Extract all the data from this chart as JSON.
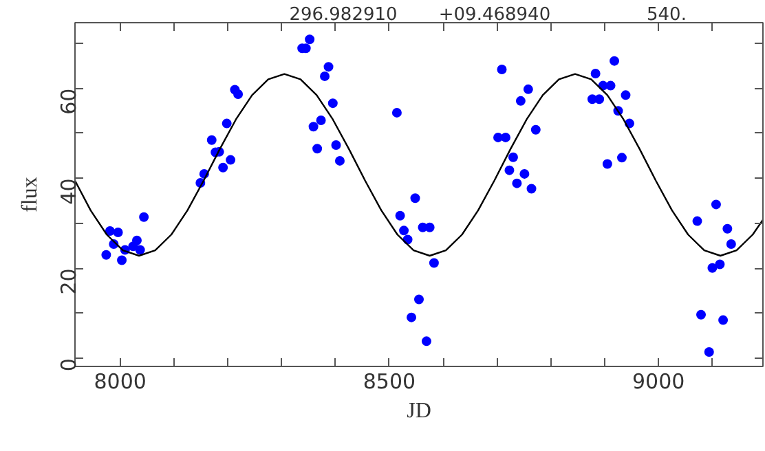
{
  "chart_data": {
    "type": "scatter",
    "xlabel": "JD",
    "ylabel": "flux",
    "annotations": [
      "296.982910",
      "+09.468940",
      "540."
    ],
    "xlim": [
      7916,
      9194
    ],
    "ylim": [
      -1.8,
      74.6
    ],
    "xticks": [
      {
        "value": 8000,
        "label": "8000"
      },
      {
        "value": 8100,
        "label": null
      },
      {
        "value": 8200,
        "label": null
      },
      {
        "value": 8300,
        "label": null
      },
      {
        "value": 8400,
        "label": null
      },
      {
        "value": 8500,
        "label": "8500"
      },
      {
        "value": 8600,
        "label": null
      },
      {
        "value": 8700,
        "label": null
      },
      {
        "value": 8800,
        "label": null
      },
      {
        "value": 8900,
        "label": null
      },
      {
        "value": 9000,
        "label": "9000"
      },
      {
        "value": 9100,
        "label": null
      }
    ],
    "yticks": [
      {
        "value": 0,
        "label": "0"
      },
      {
        "value": 10,
        "label": null
      },
      {
        "value": 20,
        "label": "20"
      },
      {
        "value": 30,
        "label": null
      },
      {
        "value": 40,
        "label": "40"
      },
      {
        "value": 50,
        "label": null
      },
      {
        "value": 60,
        "label": "60"
      },
      {
        "value": 70,
        "label": null
      }
    ],
    "grid": false,
    "marker": "circle",
    "series": [
      {
        "color": "#0000ff",
        "x": [
          7974,
          7981,
          7988,
          7996,
          8003,
          8009,
          8024,
          8031,
          8037,
          8044,
          8149,
          8156,
          8170,
          8177,
          8184,
          8191,
          8198,
          8205,
          8213,
          8219,
          8338,
          8345,
          8352,
          8359,
          8366,
          8373,
          8380,
          8387,
          8395,
          8401,
          8408,
          8514,
          8520,
          8527,
          8534,
          8541,
          8548,
          8555,
          8562,
          8569,
          8575,
          8583,
          8702,
          8709,
          8716,
          8723,
          8730,
          8737,
          8744,
          8751,
          8758,
          8764,
          8772,
          8877,
          8883,
          8890,
          8897,
          8905,
          8911,
          8918,
          8925,
          8932,
          8939,
          8946,
          9072,
          9079,
          9094,
          9100,
          9107,
          9114,
          9120,
          9128,
          9135
        ],
        "values": [
          23.0,
          28.3,
          25.4,
          28.0,
          21.8,
          24.1,
          24.9,
          26.2,
          24.1,
          31.4,
          39.0,
          41.0,
          48.5,
          45.8,
          45.9,
          42.4,
          52.2,
          44.1,
          59.7,
          58.7,
          68.9,
          68.9,
          70.9,
          51.5,
          46.6,
          52.9,
          62.7,
          64.8,
          56.7,
          47.4,
          43.9,
          54.6,
          31.7,
          28.4,
          26.4,
          9.1,
          35.6,
          13.1,
          29.1,
          3.8,
          29.1,
          21.2,
          49.1,
          64.2,
          49.1,
          41.8,
          44.7,
          38.9,
          57.2,
          41.0,
          59.8,
          37.7,
          50.8,
          57.6,
          63.3,
          57.6,
          60.6,
          43.2,
          60.6,
          66.1,
          55.0,
          44.6,
          58.5,
          52.2,
          30.5,
          9.7,
          1.4,
          20.1,
          34.2,
          20.9,
          8.5,
          28.8,
          25.4
        ]
      },
      {
        "type": "line",
        "color": "#000000",
        "marker": "none",
        "line_style": "solid",
        "x": [
          7916,
          7945,
          7975,
          8005,
          8035,
          8065,
          8095,
          8125,
          8155,
          8185,
          8215,
          8245,
          8275,
          8305,
          8335,
          8365,
          8395,
          8425,
          8455,
          8485,
          8515,
          8545,
          8575,
          8605,
          8635,
          8665,
          8695,
          8725,
          8755,
          8785,
          8815,
          8845,
          8875,
          8905,
          8935,
          8965,
          8995,
          9025,
          9055,
          9085,
          9115,
          9145,
          9175,
          9194
        ],
        "values": [
          39.5,
          32.9,
          27.5,
          24.0,
          22.8,
          24.0,
          27.5,
          32.9,
          39.5,
          46.5,
          53.1,
          58.5,
          62.0,
          63.2,
          62.0,
          58.5,
          53.1,
          46.5,
          39.5,
          32.9,
          27.5,
          24.0,
          22.8,
          24.0,
          27.5,
          32.9,
          39.5,
          46.5,
          53.1,
          58.5,
          62.0,
          63.2,
          62.0,
          58.5,
          53.1,
          46.5,
          39.5,
          32.9,
          27.5,
          24.0,
          22.8,
          24.0,
          27.5,
          30.8
        ]
      }
    ]
  }
}
